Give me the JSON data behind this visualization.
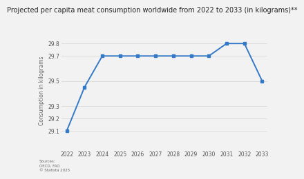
{
  "title": "Projected per capita meat consumption worldwide from 2022 to 2033 (in kilograms)**",
  "years": [
    2022,
    2023,
    2024,
    2025,
    2026,
    2027,
    2028,
    2029,
    2030,
    2031,
    2032,
    2033
  ],
  "values": [
    29.1,
    29.45,
    29.7,
    29.7,
    29.7,
    29.7,
    29.7,
    29.7,
    29.7,
    29.8,
    29.8,
    29.5
  ],
  "ylabel": "Consumption in kilograms",
  "ylim": [
    28.95,
    29.9
  ],
  "yticks": [
    29.1,
    29.2,
    29.3,
    29.5,
    29.7,
    29.8
  ],
  "xlim_min": 2021.7,
  "xlim_max": 2033.3,
  "line_color": "#3479c7",
  "marker": "s",
  "marker_size": 2.5,
  "line_width": 1.4,
  "background_color": "#f2f2f2",
  "plot_bg_color": "#f2f2f2",
  "grid_color": "#d8d8d8",
  "source_text": "Sources:\nOECD, FAO\n© Statista 2025",
  "title_fontsize": 7.0,
  "label_fontsize": 5.5,
  "tick_fontsize": 5.5
}
